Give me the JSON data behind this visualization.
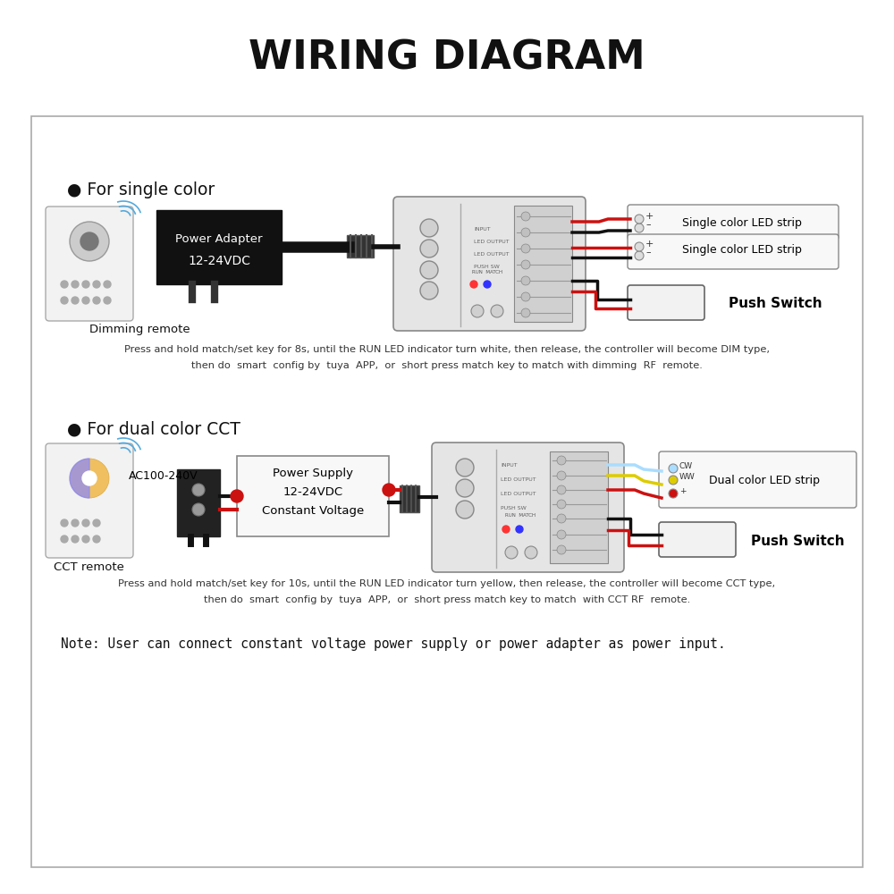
{
  "title": "WIRING DIAGRAM",
  "bg_color": "#ffffff",
  "section1_label": "● For single color",
  "section2_label": "● For dual color CCT",
  "dimming_remote_label": "Dimming remote",
  "cct_remote_label": "CCT remote",
  "power_adapter_line1": "Power Adapter",
  "power_adapter_line2": "12-24VDC",
  "power_supply_line1": "Power Supply",
  "power_supply_line2": "12-24VDC",
  "power_supply_line3": "Constant Voltage",
  "ac_label": "AC100-240V",
  "single_color_strip1": "Single color LED strip",
  "single_color_strip2": "Single color LED strip",
  "dual_color_strip": "Dual color LED strip",
  "push_switch": "Push Switch",
  "note_text": "Note: User can connect constant voltage power supply or power adapter as power input.",
  "desc1_line1": "Press and hold match/set key for 8s, until the RUN LED indicator turn white, then release, the controller will become DIM type,",
  "desc1_line2": "then do  smart  config by  tuya  APP,  or  short press match key to match with dimming  RF  remote.",
  "desc2_line1": "Press and hold match/set key for 10s, until the RUN LED indicator turn yellow, then release, the controller will become CCT type,",
  "desc2_line2": "then do  smart  config by  tuya  APP,  or  short press match key to match  with CCT RF  remote."
}
